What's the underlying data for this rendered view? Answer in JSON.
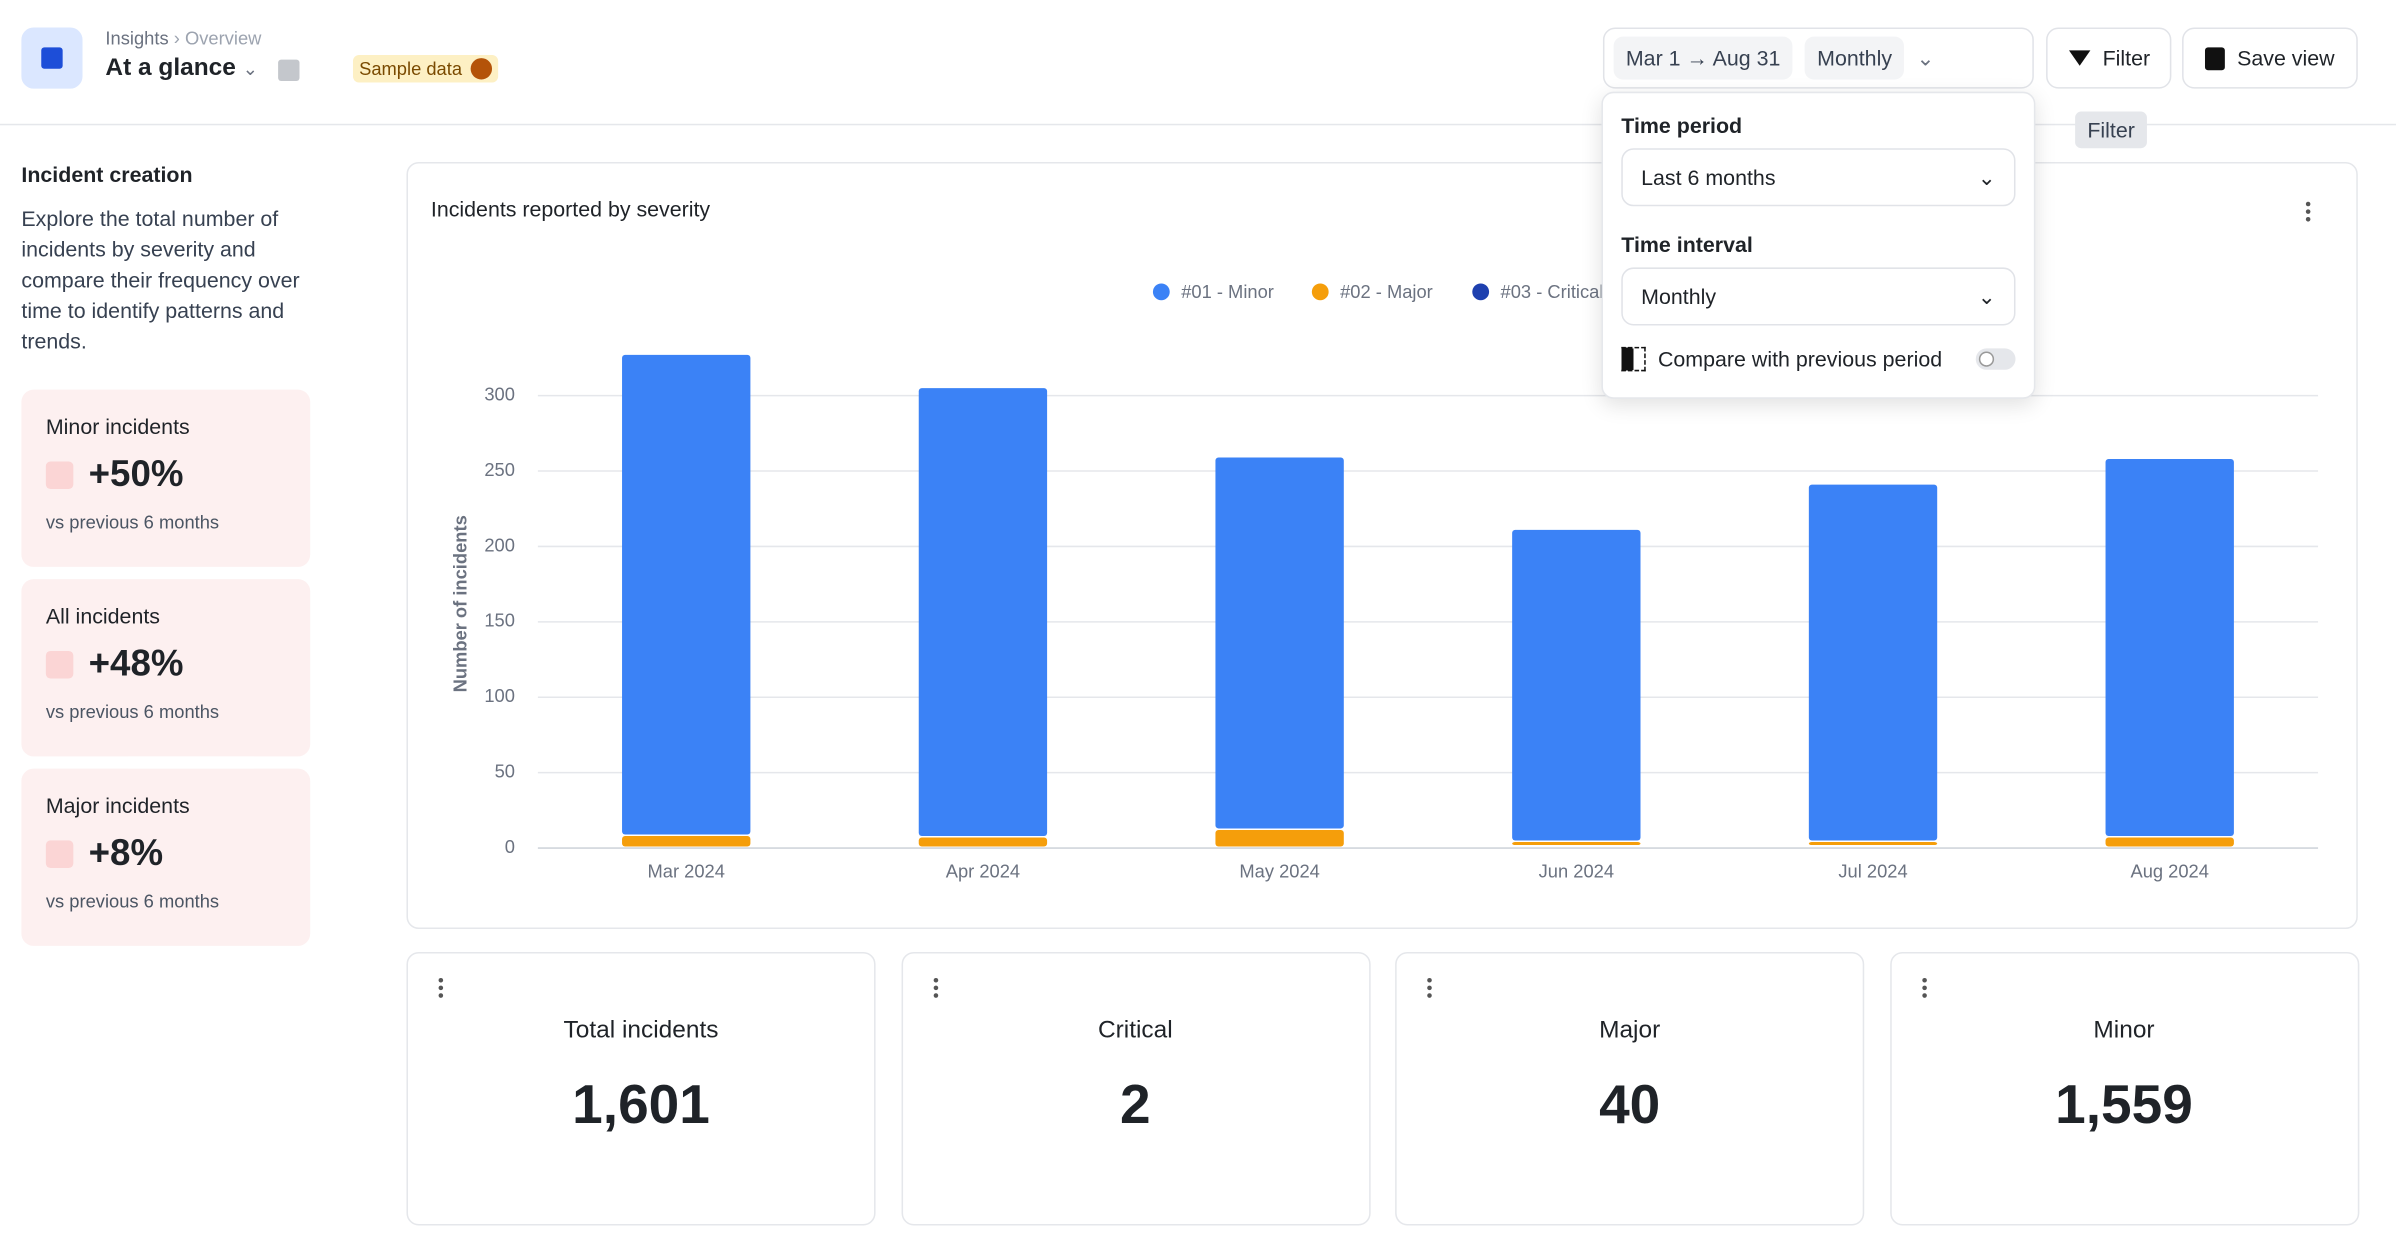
{
  "header": {
    "breadcrumb": [
      "Insights",
      "Overview"
    ],
    "title": "At a glance",
    "badge": "Sample data",
    "date_range": "Mar 1 → Aug 31",
    "interval": "Monthly",
    "filter_button": "Filter",
    "save_button": "Save view",
    "tooltip": "Filter"
  },
  "sidebar": {
    "heading": "Incident creation",
    "description": "Explore the total number of incidents by severity and compare their frequency over time to identify patterns and trends.",
    "cards": [
      {
        "label": "Minor incidents",
        "change": "+50%",
        "note": "vs previous 6 months"
      },
      {
        "label": "All incidents",
        "change": "+48%",
        "note": "vs previous 6 months"
      },
      {
        "label": "Major incidents",
        "change": "+8%",
        "note": "vs previous 6 months"
      }
    ]
  },
  "chart_data": {
    "type": "stacked-bar",
    "title": "Incidents reported by severity",
    "y_label": "Number of incidents",
    "categories": [
      "Mar 2024",
      "Apr 2024",
      "May 2024",
      "Jun 2024",
      "Jul 2024",
      "Aug 2024"
    ],
    "series": [
      {
        "name": "#01 - Minor",
        "color": "#3b82f6",
        "values": [
          319,
          298,
          247,
          207,
          237,
          251
        ]
      },
      {
        "name": "#02 - Major",
        "color": "#f59e0b",
        "values": [
          8,
          7,
          12,
          3,
          3,
          7
        ]
      },
      {
        "name": "#03 - Critical",
        "color": "#1e40af",
        "values": [
          0,
          0,
          0,
          1,
          1,
          0
        ]
      }
    ],
    "ylim": [
      0,
      330
    ],
    "yticks": [
      0,
      50,
      100,
      150,
      200,
      250,
      300
    ],
    "grid": true,
    "legend": "top"
  },
  "stats": [
    {
      "label": "Total incidents",
      "value": "1,601"
    },
    {
      "label": "Critical",
      "value": "2"
    },
    {
      "label": "Major",
      "value": "40"
    },
    {
      "label": "Minor",
      "value": "1,559"
    }
  ],
  "popover": {
    "time_period_label": "Time period",
    "time_period_value": "Last 6 months",
    "time_interval_label": "Time interval",
    "time_interval_value": "Monthly",
    "compare_label": "Compare with previous period"
  }
}
